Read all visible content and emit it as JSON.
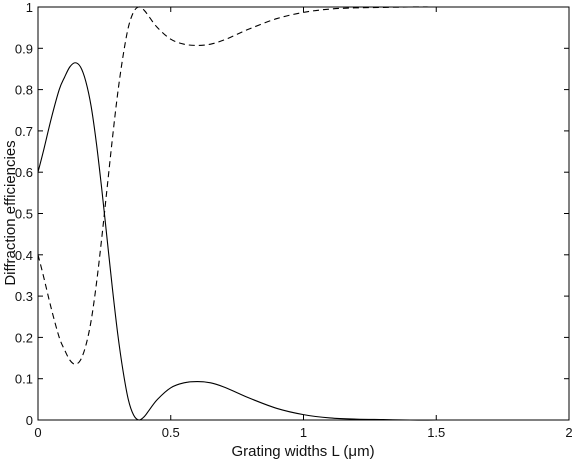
{
  "chart_data": {
    "type": "line",
    "xlabel": "Grating  widths L (μm)",
    "ylabel": "Diffraction efficiencies",
    "xlim": [
      0,
      2
    ],
    "ylim": [
      0,
      1
    ],
    "xticks": [
      "0",
      "0.5",
      "1",
      "1.5",
      "2"
    ],
    "yticks": [
      "0",
      "0.1",
      "0.2",
      "0.3",
      "0.4",
      "0.5",
      "0.6",
      "0.7",
      "0.8",
      "0.9",
      "1"
    ],
    "grid": false,
    "legend": "none",
    "series": [
      {
        "style": "solid",
        "x": [
          0,
          0.02,
          0.05,
          0.08,
          0.1,
          0.12,
          0.14,
          0.16,
          0.18,
          0.2,
          0.22,
          0.24,
          0.26,
          0.28,
          0.3,
          0.32,
          0.34,
          0.36,
          0.38,
          0.4,
          0.42,
          0.45,
          0.5,
          0.55,
          0.6,
          0.65,
          0.7,
          0.75,
          0.8,
          0.9,
          1.0,
          1.1,
          1.2,
          1.3,
          1.4,
          1.5,
          1.6,
          1.8,
          2.0
        ],
        "y": [
          0.6,
          0.65,
          0.73,
          0.8,
          0.83,
          0.855,
          0.865,
          0.855,
          0.82,
          0.76,
          0.67,
          0.56,
          0.44,
          0.32,
          0.21,
          0.12,
          0.05,
          0.012,
          0.0,
          0.008,
          0.025,
          0.05,
          0.078,
          0.09,
          0.093,
          0.09,
          0.08,
          0.066,
          0.052,
          0.028,
          0.013,
          0.005,
          0.002,
          0.001,
          0.0,
          0.0,
          0.0,
          0.0,
          0.0
        ]
      },
      {
        "style": "dashed",
        "x": [
          0,
          0.02,
          0.05,
          0.08,
          0.1,
          0.12,
          0.14,
          0.16,
          0.18,
          0.2,
          0.22,
          0.24,
          0.26,
          0.28,
          0.3,
          0.32,
          0.34,
          0.36,
          0.38,
          0.4,
          0.42,
          0.45,
          0.5,
          0.55,
          0.6,
          0.65,
          0.7,
          0.75,
          0.8,
          0.9,
          1.0,
          1.1,
          1.2,
          1.3,
          1.4,
          1.5,
          1.6,
          1.8,
          2.0
        ],
        "y": [
          0.4,
          0.35,
          0.27,
          0.2,
          0.17,
          0.145,
          0.135,
          0.145,
          0.18,
          0.24,
          0.33,
          0.44,
          0.56,
          0.68,
          0.79,
          0.88,
          0.95,
          0.988,
          1.0,
          0.992,
          0.975,
          0.95,
          0.922,
          0.91,
          0.907,
          0.91,
          0.92,
          0.934,
          0.948,
          0.972,
          0.987,
          0.995,
          0.998,
          0.999,
          1.0,
          1.0,
          1.0,
          1.0,
          1.0
        ]
      }
    ]
  }
}
